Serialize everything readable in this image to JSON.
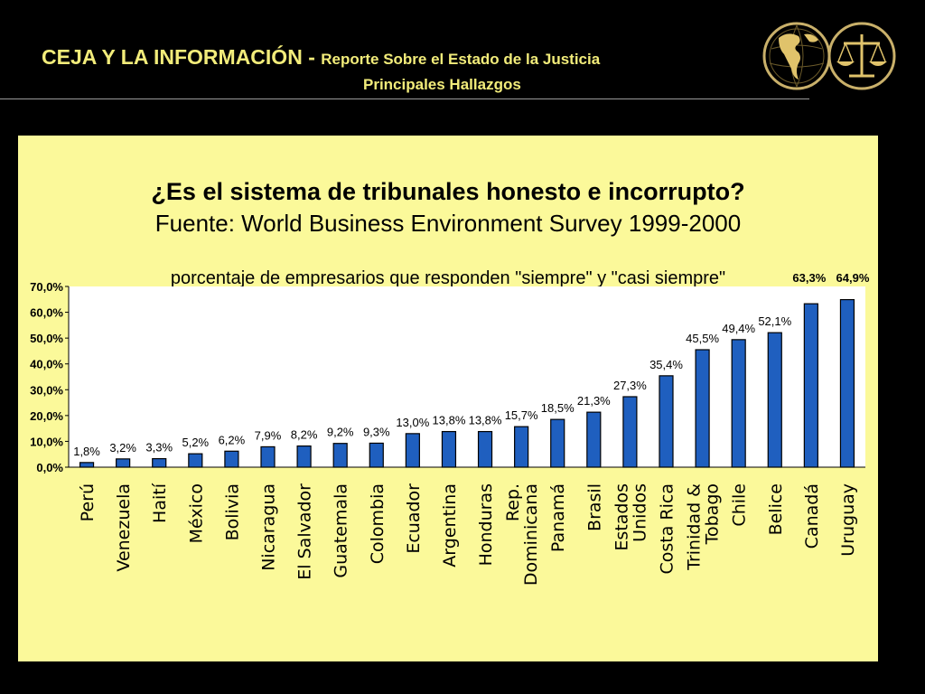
{
  "header": {
    "title_main": "CEJA Y LA INFORMACIÓN - ",
    "title_sub": "Reporte Sobre el Estado de la Justicia",
    "subtitle": "Principales Hallazgos"
  },
  "colors": {
    "background": "#000000",
    "header_text": "#f2ec7a",
    "panel": "#fbf99a",
    "plot_area": "#ffffff",
    "bar": "#1f5fbf",
    "bar_outline": "#000000"
  },
  "icons": [
    "globe-icon",
    "scales-of-justice-icon"
  ],
  "chart_data": {
    "type": "bar",
    "title": "¿Es el sistema de tribunales honesto e incorrupto?",
    "subtitle": "Fuente: World Business Environment Survey 1999-2000",
    "series_label": "porcentaje de empresarios que responden \"siempre\" y \"casi siempre\"",
    "categories": [
      [
        "Perú"
      ],
      [
        "Venezuela"
      ],
      [
        "Haití"
      ],
      [
        "México"
      ],
      [
        "Bolivia"
      ],
      [
        "Nicaragua"
      ],
      [
        "El Salvador"
      ],
      [
        "Guatemala"
      ],
      [
        "Colombia"
      ],
      [
        "Ecuador"
      ],
      [
        "Argentina"
      ],
      [
        "Honduras"
      ],
      [
        "Rep.",
        "Dominicana"
      ],
      [
        "Panamá"
      ],
      [
        "Brasil"
      ],
      [
        "Estados",
        "Unidos"
      ],
      [
        "Costa Rica"
      ],
      [
        "Trinidad &",
        "Tobago"
      ],
      [
        "Chile"
      ],
      [
        "Belice"
      ],
      [
        "Canadá"
      ],
      [
        "Uruguay"
      ]
    ],
    "values": [
      1.8,
      3.2,
      3.3,
      5.2,
      6.2,
      7.9,
      8.2,
      9.2,
      9.3,
      13.0,
      13.8,
      13.8,
      15.7,
      18.5,
      21.3,
      27.3,
      35.4,
      45.5,
      49.4,
      52.1,
      63.3,
      64.9
    ],
    "data_labels": [
      "1,8%",
      "3,2%",
      "3,3%",
      "5,2%",
      "6,2%",
      "7,9%",
      "8,2%",
      "9,2%",
      "9,3%",
      "13,0%",
      "13,8%",
      "13,8%",
      "15,7%",
      "18,5%",
      "21,3%",
      "27,3%",
      "35,4%",
      "45,5%",
      "49,4%",
      "52,1%",
      "63,3%",
      "64,9%"
    ],
    "yticks": [
      0,
      10,
      20,
      30,
      40,
      50,
      60,
      70
    ],
    "ytick_labels": [
      "0,0%",
      "10,0%",
      "20,0%",
      "30,0%",
      "40,0%",
      "50,0%",
      "60,0%",
      "70,0%"
    ],
    "ylim": [
      0,
      70
    ],
    "grid": false,
    "legend": "none"
  }
}
